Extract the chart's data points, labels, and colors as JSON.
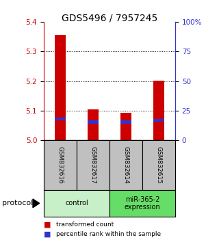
{
  "title": "GDS5496 / 7957245",
  "samples": [
    "GSM832616",
    "GSM832617",
    "GSM832614",
    "GSM832615"
  ],
  "red_values": [
    5.355,
    5.105,
    5.092,
    5.202
  ],
  "blue_values": [
    5.072,
    5.062,
    5.062,
    5.068
  ],
  "ylim": [
    5.0,
    5.4
  ],
  "yticks_left": [
    5.0,
    5.1,
    5.2,
    5.3,
    5.4
  ],
  "yticks_right": [
    0,
    25,
    50,
    75,
    100
  ],
  "yticks_right_labels": [
    "0",
    "25",
    "50",
    "75",
    "100%"
  ],
  "bar_width": 0.35,
  "red_color": "#cc0000",
  "blue_color": "#3333cc",
  "protocol_groups": [
    {
      "label": "control",
      "samples": [
        0,
        1
      ],
      "color": "#c8f0c8"
    },
    {
      "label": "miR-365-2\nexpression",
      "samples": [
        2,
        3
      ],
      "color": "#66dd66"
    }
  ],
  "legend_red": "transformed count",
  "legend_blue": "percentile rank within the sample",
  "protocol_label": "protocol",
  "title_fontsize": 10,
  "tick_fontsize": 7.5,
  "left_color": "#cc0000",
  "right_color": "#3333cc",
  "sample_box_color": "#c0c0c0",
  "grid_yticks": [
    5.1,
    5.2,
    5.3
  ]
}
